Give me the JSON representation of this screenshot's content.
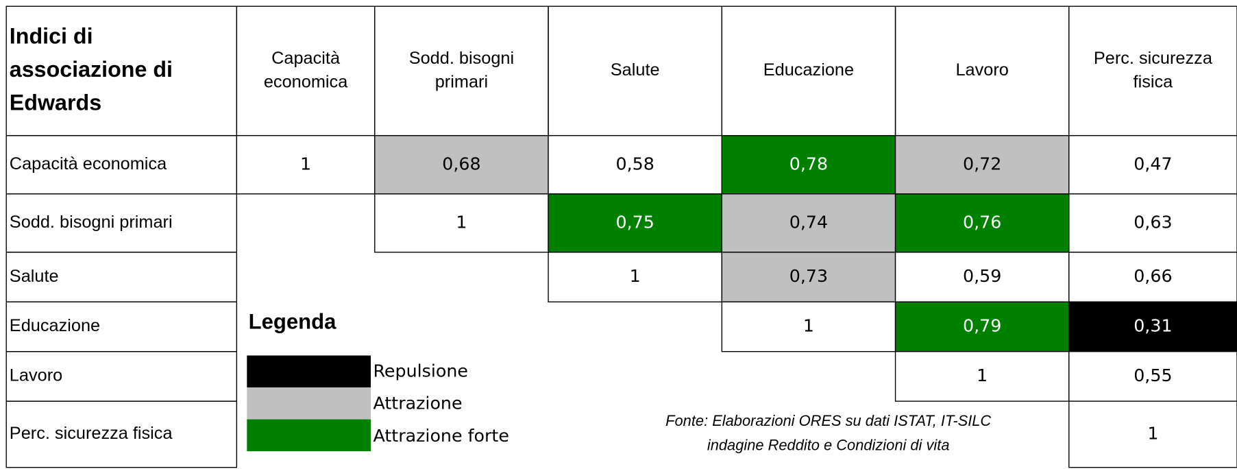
{
  "table": {
    "title": [
      "Indici di",
      "associazione di",
      "Edwards"
    ],
    "columns": [
      [
        "Capacità",
        "economica"
      ],
      [
        "Sodd. bisogni",
        "primari"
      ],
      [
        "Salute"
      ],
      [
        "Educazione"
      ],
      [
        "Lavoro"
      ],
      [
        "Perc. sicurezza",
        "fisica"
      ]
    ],
    "row_labels": [
      "Capacità economica",
      "Sodd. bisogni primari",
      "Salute",
      "Educazione",
      "Lavoro",
      "Perc. sicurezza fisica"
    ],
    "rows": [
      [
        {
          "text": "1"
        },
        {
          "text": "0,68",
          "color": "#c0c0c0"
        },
        {
          "text": "0,58"
        },
        {
          "text": "0,78",
          "color": "#008000"
        },
        {
          "text": "0,72",
          "color": "#c0c0c0"
        },
        {
          "text": "0,47"
        }
      ],
      [
        null,
        {
          "text": "1"
        },
        {
          "text": "0,75",
          "color": "#008000"
        },
        {
          "text": "0,74",
          "color": "#c0c0c0"
        },
        {
          "text": "0,76",
          "color": "#008000"
        },
        {
          "text": "0,63"
        }
      ],
      [
        null,
        null,
        {
          "text": "1"
        },
        {
          "text": "0,73",
          "color": "#c0c0c0"
        },
        {
          "text": "0,59"
        },
        {
          "text": "0,66"
        }
      ],
      [
        null,
        null,
        null,
        {
          "text": "1"
        },
        {
          "text": "0,79",
          "color": "#008000"
        },
        {
          "text": "0,31",
          "color": "#000000"
        }
      ],
      [
        null,
        null,
        null,
        null,
        {
          "text": "1"
        },
        {
          "text": "0,55"
        }
      ],
      [
        null,
        null,
        null,
        null,
        null,
        {
          "text": "1"
        }
      ]
    ]
  },
  "legend": {
    "title": "Legenda",
    "items": [
      {
        "label": "Repulsione",
        "color": "#000000"
      },
      {
        "label": "Attrazione",
        "color": "#c0c0c0"
      },
      {
        "label": "Attrazione forte",
        "color": "#008000"
      }
    ]
  },
  "source": [
    "Fonte: Elaborazioni ORES su dati ISTAT, IT-SILC",
    "indagine Reddito e Condizioni di vita"
  ]
}
